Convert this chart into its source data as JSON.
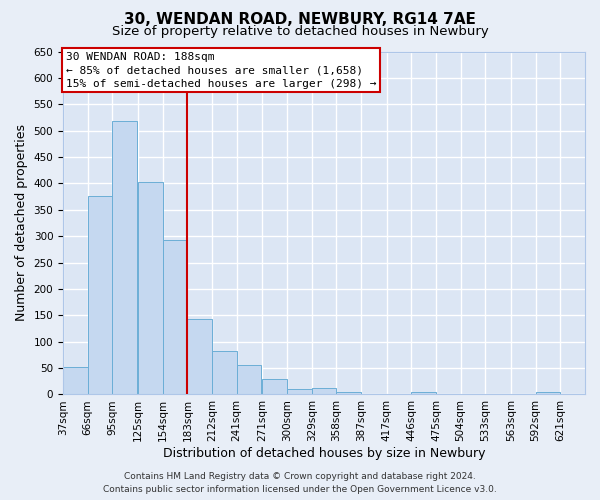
{
  "title": "30, WENDAN ROAD, NEWBURY, RG14 7AE",
  "subtitle": "Size of property relative to detached houses in Newbury",
  "xlabel": "Distribution of detached houses by size in Newbury",
  "ylabel": "Number of detached properties",
  "bar_color": "#c5d8f0",
  "bar_edge_color": "#6baed6",
  "bin_labels": [
    "37sqm",
    "66sqm",
    "95sqm",
    "125sqm",
    "154sqm",
    "183sqm",
    "212sqm",
    "241sqm",
    "271sqm",
    "300sqm",
    "329sqm",
    "358sqm",
    "387sqm",
    "417sqm",
    "446sqm",
    "475sqm",
    "504sqm",
    "533sqm",
    "563sqm",
    "592sqm",
    "621sqm"
  ],
  "bin_left_edges": [
    37,
    66,
    95,
    125,
    154,
    183,
    212,
    241,
    271,
    300,
    329,
    358,
    387,
    417,
    446,
    475,
    504,
    533,
    563,
    592,
    621
  ],
  "bar_heights": [
    52,
    377,
    519,
    402,
    293,
    143,
    82,
    55,
    30,
    10,
    12,
    5,
    0,
    0,
    5,
    0,
    0,
    0,
    0,
    5,
    0
  ],
  "bin_width": 29,
  "vline_x": 183,
  "vline_color": "#cc0000",
  "ylim": [
    0,
    650
  ],
  "yticks": [
    0,
    50,
    100,
    150,
    200,
    250,
    300,
    350,
    400,
    450,
    500,
    550,
    600,
    650
  ],
  "annotation_title": "30 WENDAN ROAD: 188sqm",
  "annotation_line1": "← 85% of detached houses are smaller (1,658)",
  "annotation_line2": "15% of semi-detached houses are larger (298) →",
  "annotation_box_edge": "#cc0000",
  "footer_line1": "Contains HM Land Registry data © Crown copyright and database right 2024.",
  "footer_line2": "Contains public sector information licensed under the Open Government Licence v3.0.",
  "background_color": "#e8eef7",
  "plot_bg_color": "#dce6f4",
  "grid_color": "#ffffff",
  "title_fontsize": 11,
  "subtitle_fontsize": 9.5,
  "axis_label_fontsize": 9,
  "tick_fontsize": 7.5,
  "annotation_fontsize": 8,
  "footer_fontsize": 6.5
}
